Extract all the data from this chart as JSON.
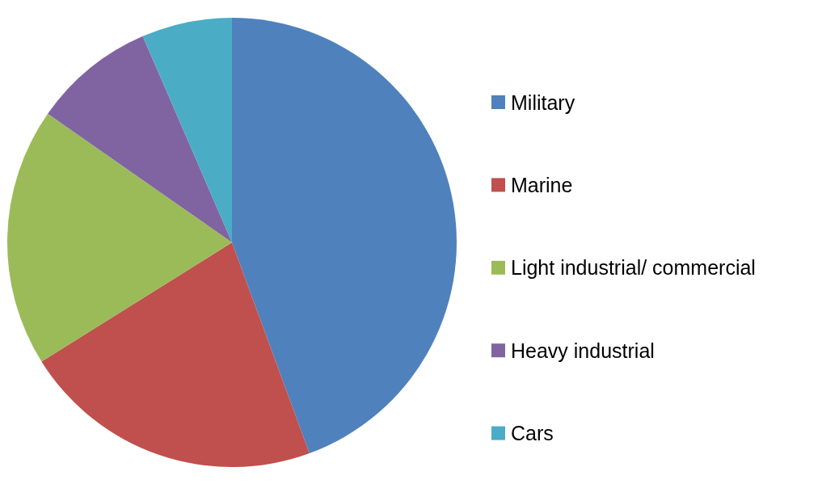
{
  "chart_data": {
    "type": "pie",
    "categories": [
      "Military",
      "Marine",
      "Light industrial/ commercial",
      "Heavy industrial",
      "Cars"
    ],
    "values": [
      44.4,
      21.7,
      18.6,
      8.8,
      6.5
    ],
    "colors": [
      "#4f81bd",
      "#c0504d",
      "#9bbb59",
      "#8064a2",
      "#4bacc6"
    ],
    "legend": "right"
  }
}
